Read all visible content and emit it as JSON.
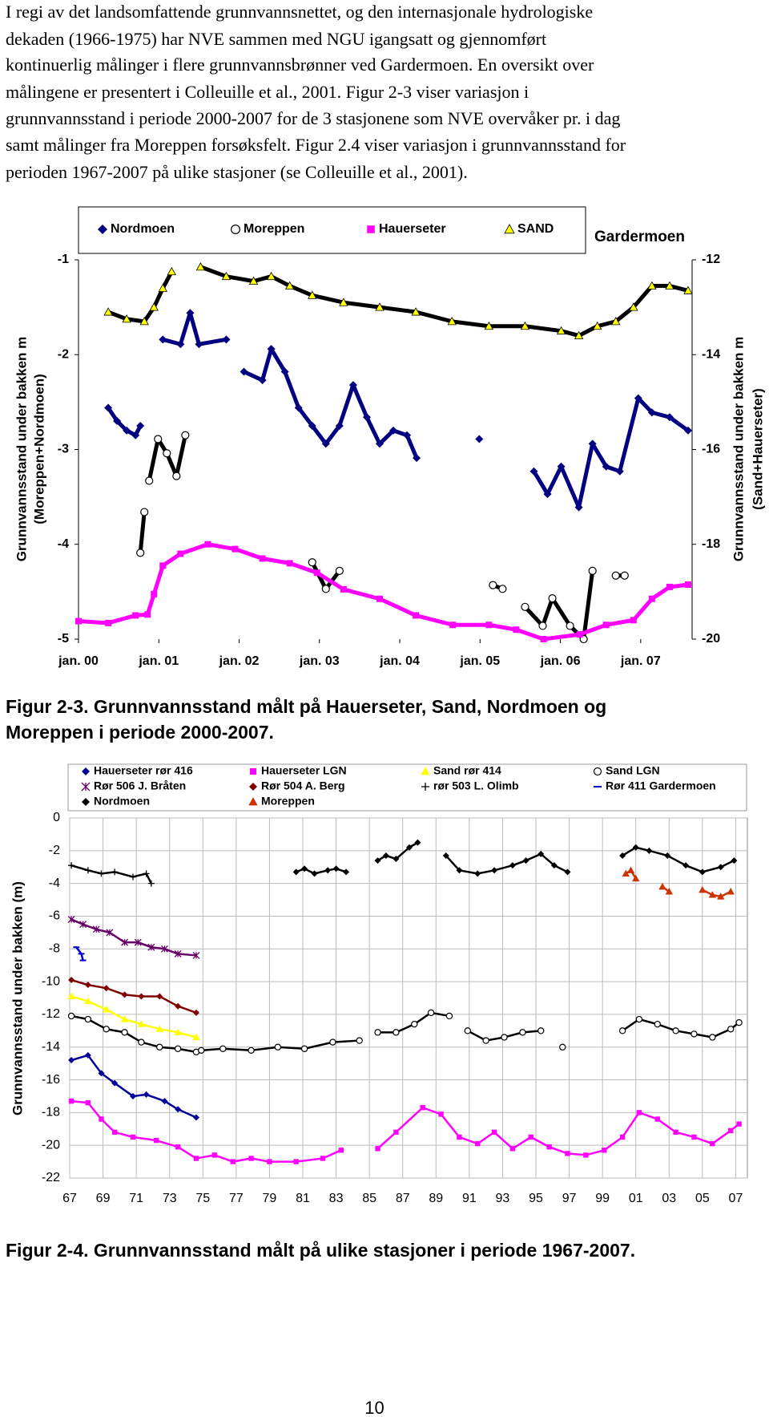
{
  "paragraph": [
    "I regi av det landsomfattende grunnvannsnettet, og den internasjonale hydrologiske",
    "dekaden (1966-1975) har NVE sammen med NGU igangsatt og gjennomført",
    "kontinuerlig målinger i flere grunnvannsbrønner ved Gardermoen. En oversikt over",
    "målingene er presentert i Colleuille et al., 2001. Figur 2-3 viser variasjon i",
    "grunnvannsstand i periode 2000-2007 for de 3 stasjonene som NVE overvåker pr. i dag",
    "samt målinger fra Moreppen forsøksfelt.  Figur 2.4 viser variasjon i grunnvannsstand for",
    "perioden 1967-2007 på ulike stasjoner (se Colleuille et al., 2001)."
  ],
  "captions": [
    [
      "Figur 2-3. Grunnvannsstand målt på Hauerseter, Sand, Nordmoen og",
      "Moreppen i periode 2000-2007."
    ],
    [
      "Figur 2-4. Grunnvannsstand målt på ulike stasjoner i periode 1967-2007."
    ]
  ],
  "page_number": 10,
  "chart_data": [
    {
      "type": "scatter",
      "title": "Gardermoen",
      "ylabel": [
        "Grunnvannsstand under bakken m",
        "(Moreppen+Nordmoen)"
      ],
      "y2label": [
        "Grunnvannsstand under bakken m",
        "(Sand+Hauerseter)"
      ],
      "xlim": [
        2000,
        2007.64
      ],
      "xticks": [
        {
          "value": 2000,
          "label": "jan. 00"
        },
        {
          "value": 2001,
          "label": "jan. 01"
        },
        {
          "value": 2002,
          "label": "jan. 02"
        },
        {
          "value": 2003,
          "label": "jan. 03"
        },
        {
          "value": 2004,
          "label": "jan. 04"
        },
        {
          "value": 2005,
          "label": "jan. 05"
        },
        {
          "value": 2006,
          "label": "jan. 06"
        },
        {
          "value": 2007,
          "label": "jan. 07"
        }
      ],
      "ylim": [
        -5,
        -1
      ],
      "yticks": [
        -1,
        -2,
        -3,
        -4,
        -5
      ],
      "y2lim": [
        -20,
        -12
      ],
      "y2ticks": [
        -12,
        -14,
        -16,
        -18,
        -20
      ],
      "grid": false,
      "series": [
        {
          "name": "Nordmoen",
          "color": "#000080",
          "marker": "diamond",
          "x": [
            2000.37,
            2000.48,
            2000.6,
            2000.71,
            2000.77,
            2000.9,
            2001.05,
            2001.27,
            2001.39,
            2001.5,
            2001.84,
            2001.95,
            2002.06,
            2002.29,
            2002.4,
            2002.57,
            2002.74,
            2002.91,
            2003.08,
            2003.25,
            2003.42,
            2003.59,
            2003.75,
            2003.92,
            2004.09,
            2004.21,
            2004.6,
            2004.99,
            2005.3,
            2005.67,
            2005.84,
            2006.01,
            2006.23,
            2006.4,
            2006.57,
            2006.74,
            2006.97,
            2007.14,
            2007.36,
            2007.59
          ],
          "values": [
            -2.56,
            -2.7,
            -2.8,
            -2.85,
            -2.75,
            null,
            -1.84,
            -1.89,
            -1.56,
            -1.89,
            -1.84,
            null,
            -2.18,
            -2.27,
            -1.94,
            -2.18,
            -2.56,
            -2.75,
            -2.94,
            -2.75,
            -2.32,
            -2.66,
            -2.94,
            -2.8,
            -2.85,
            -3.09,
            null,
            -2.89,
            null,
            -3.23,
            -3.47,
            -3.18,
            -3.61,
            -2.94,
            -3.18,
            -3.23,
            -2.46,
            -2.61,
            -2.66,
            -2.8
          ]
        },
        {
          "name": "Moreppen",
          "color": "#000000",
          "marker": "circle-open",
          "x": [
            2000.77,
            2000.82,
            2000.85,
            2000.88,
            2000.99,
            2001.1,
            2001.22,
            2001.33,
            2002.1,
            2002.91,
            2003.08,
            2003.25,
            2004.2,
            2005.16,
            2005.28,
            2005.4,
            2005.56,
            2005.78,
            2005.9,
            2006.12,
            2006.29,
            2006.4,
            2006.55,
            2006.69,
            2006.8
          ],
          "values": [
            -4.09,
            -3.66,
            null,
            -3.33,
            -2.89,
            -3.04,
            -3.28,
            -2.85,
            null,
            -4.19,
            -4.47,
            -4.28,
            null,
            -4.43,
            -4.47,
            null,
            -4.66,
            -4.86,
            -4.57,
            -4.86,
            -5,
            -4.28,
            null,
            -4.33,
            -4.33
          ]
        },
        {
          "name": "Hauerseter",
          "color": "#ff00ff",
          "marker": "square",
          "axis": "y2",
          "x": [
            2000,
            2000.37,
            2000.71,
            2000.86,
            2000.94,
            2001.05,
            2001.27,
            2001.61,
            2001.95,
            2002.29,
            2002.63,
            2002.97,
            2003.3,
            2003.75,
            2004.2,
            2004.66,
            2005.11,
            2005.45,
            2005.79,
            2006.24,
            2006.57,
            2006.91,
            2007.14,
            2007.36,
            2007.59
          ],
          "values": [
            -19.62,
            -19.66,
            -19.5,
            -19.48,
            -19.05,
            -18.45,
            -18.2,
            -18.0,
            -18.1,
            -18.3,
            -18.4,
            -18.6,
            -18.95,
            -19.15,
            -19.5,
            -19.7,
            -19.7,
            -19.8,
            -20.0,
            -19.9,
            -19.7,
            -19.6,
            -19.15,
            -18.9,
            -18.85
          ]
        },
        {
          "name": "SAND",
          "color": "#ffff00",
          "edge_color": "#000000",
          "marker": "triangle",
          "axis": "y2",
          "x": [
            2000.37,
            2000.6,
            2000.82,
            2000.94,
            2001.05,
            2001.16,
            2001.3,
            2001.52,
            2001.84,
            2002.18,
            2002.4,
            2002.63,
            2002.91,
            2003.3,
            2003.75,
            2004.2,
            2004.65,
            2005.11,
            2005.56,
            2006.01,
            2006.23,
            2006.46,
            2006.69,
            2006.91,
            2007.14,
            2007.36,
            2007.59
          ],
          "values": [
            -13.1,
            -13.25,
            -13.3,
            -13.0,
            -12.6,
            -12.25,
            null,
            -12.15,
            -12.35,
            -12.45,
            -12.35,
            -12.55,
            -12.75,
            -12.9,
            -13.0,
            -13.1,
            -13.3,
            -13.4,
            -13.4,
            -13.5,
            -13.6,
            -13.4,
            -13.3,
            -13.0,
            -12.55,
            -12.55,
            -12.65
          ]
        }
      ]
    },
    {
      "type": "scatter",
      "ylabel": [
        "Grunnvannsstand under bakken (m)"
      ],
      "xlim": [
        1967,
        2007.7
      ],
      "xticks": [
        {
          "value": 1967,
          "label": "67"
        },
        {
          "value": 1969,
          "label": "69"
        },
        {
          "value": 1971,
          "label": "71"
        },
        {
          "value": 1973,
          "label": "73"
        },
        {
          "value": 1975,
          "label": "75"
        },
        {
          "value": 1977,
          "label": "77"
        },
        {
          "value": 1979,
          "label": "79"
        },
        {
          "value": 1981,
          "label": "81"
        },
        {
          "value": 1983,
          "label": "83"
        },
        {
          "value": 1985,
          "label": "85"
        },
        {
          "value": 1987,
          "label": "87"
        },
        {
          "value": 1989,
          "label": "89"
        },
        {
          "value": 1991,
          "label": "91"
        },
        {
          "value": 1993,
          "label": "93"
        },
        {
          "value": 1995,
          "label": "95"
        },
        {
          "value": 1997,
          "label": "97"
        },
        {
          "value": 1999,
          "label": "99"
        },
        {
          "value": 2001,
          "label": "01"
        },
        {
          "value": 2003,
          "label": "03"
        },
        {
          "value": 2005,
          "label": "05"
        },
        {
          "value": 2007,
          "label": "07"
        }
      ],
      "ylim": [
        -22,
        0
      ],
      "yticks": [
        0,
        -2,
        -4,
        -6,
        -8,
        -10,
        -12,
        -14,
        -16,
        -18,
        -20,
        -22
      ],
      "grid": true,
      "series": [
        {
          "name": "Hauerseter rør 416",
          "color": "#000099",
          "marker": "diamond",
          "x": [
            1967.1,
            1968.1,
            1968.9,
            1969.7,
            1970.8,
            1971.6,
            1972.7,
            1973.5,
            1974.6
          ],
          "values": [
            -14.8,
            -14.5,
            -15.6,
            -16.2,
            -17.0,
            -16.9,
            -17.3,
            -17.8,
            -18.3
          ]
        },
        {
          "name": "Hauerseter LGN",
          "color": "#ff00ff",
          "marker": "square",
          "x": [
            1967.1,
            1968.1,
            1968.9,
            1969.7,
            1970.8,
            1972.2,
            1973.5,
            1974.6,
            1975.7,
            1976.8,
            1977.9,
            1979.0,
            1980.6,
            1982.2,
            1983.3,
            1984.4,
            1985.5,
            1986.6,
            1988.2,
            1989.3,
            1990.4,
            1991.5,
            1992.5,
            1993.6,
            1994.7,
            1995.8,
            1996.9,
            1998.0,
            1999.1,
            2000.2,
            2001.2,
            2002.3,
            2003.4,
            2004.5,
            2005.6,
            2006.7,
            2007.2
          ],
          "values": [
            -17.3,
            -17.4,
            -18.4,
            -19.2,
            -19.5,
            -19.7,
            -20.1,
            -20.8,
            -20.6,
            -21.0,
            -20.8,
            -21.0,
            -21.0,
            -20.8,
            -20.3,
            null,
            -20.2,
            -19.2,
            -17.7,
            -18.1,
            -19.5,
            -19.9,
            -19.2,
            -20.2,
            -19.5,
            -20.1,
            -20.5,
            -20.6,
            -20.3,
            -19.5,
            -18.0,
            -18.4,
            -19.2,
            -19.5,
            -19.9,
            -19.1,
            -18.7
          ]
        },
        {
          "name": "Sand rør 414",
          "color": "#ffff00",
          "marker": "triangle",
          "x": [
            1967.1,
            1968.1,
            1969.2,
            1970.3,
            1971.3,
            1972.4,
            1973.5,
            1974.6
          ],
          "values": [
            -10.9,
            -11.2,
            -11.7,
            -12.3,
            -12.6,
            -12.9,
            -13.1,
            -13.4
          ]
        },
        {
          "name": "Sand LGN",
          "color": "#000000",
          "marker": "circle-open",
          "x": [
            1967.1,
            1968.1,
            1969.2,
            1970.3,
            1971.3,
            1972.4,
            1973.5,
            1974.6,
            1974.9,
            1976.2,
            1977.9,
            1979.5,
            1981.1,
            1982.8,
            1984.4,
            1985.0,
            1985.5,
            1986.6,
            1987.7,
            1988.7,
            1989.8,
            1990.4,
            1990.9,
            1992.0,
            1993.1,
            1994.2,
            1995.3,
            1996.0,
            1996.6,
            1998.5,
            2000.2,
            2001.2,
            2002.3,
            2003.4,
            2004.5,
            2005.6,
            2006.7,
            2007.2
          ],
          "values": [
            -12.1,
            -12.3,
            -12.9,
            -13.1,
            -13.7,
            -14.0,
            -14.1,
            -14.3,
            -14.2,
            -14.1,
            -14.2,
            -14.0,
            -14.1,
            -13.7,
            -13.6,
            null,
            -13.1,
            -13.1,
            -12.6,
            -11.9,
            -12.1,
            null,
            -13.0,
            -13.6,
            -13.4,
            -13.1,
            -13.0,
            null,
            -14.0,
            null,
            -13.0,
            -12.3,
            -12.6,
            -13.0,
            -13.2,
            -13.4,
            -12.9,
            -12.5
          ]
        },
        {
          "name": "Rør 506 J. Bråten",
          "color": "#660066",
          "marker": "star",
          "x": [
            1967.1,
            1967.8,
            1968.6,
            1969.4,
            1970.3,
            1971.1,
            1971.9,
            1972.7,
            1973.5,
            1974.6
          ],
          "values": [
            -6.2,
            -6.5,
            -6.8,
            -7.0,
            -7.6,
            -7.6,
            -7.9,
            -8.0,
            -8.3,
            -8.4
          ]
        },
        {
          "name": "Rør 504 A. Berg",
          "color": "#800000",
          "marker": "diamond",
          "x": [
            1967.1,
            1968.1,
            1969.2,
            1970.3,
            1971.3,
            1972.4,
            1973.5,
            1974.6
          ],
          "values": [
            -9.9,
            -10.2,
            -10.4,
            -10.8,
            -10.9,
            -10.9,
            -11.5,
            -11.9
          ]
        },
        {
          "name": "rør 503  L. Olimb",
          "color": "#000000",
          "marker": "plus",
          "x": [
            1967.1,
            1968.1,
            1968.9,
            1969.7,
            1970.8,
            1971.6,
            1971.9
          ],
          "values": [
            -2.9,
            -3.2,
            -3.4,
            -3.3,
            -3.6,
            -3.4,
            -4.0
          ]
        },
        {
          "name": "Rør 411 Gardermoen",
          "color": "#0000cc",
          "marker": "dash",
          "x": [
            1967.4,
            1967.7,
            1967.8
          ],
          "values": [
            -7.9,
            -8.3,
            -8.7
          ]
        },
        {
          "name": "Nordmoen",
          "color": "#000000",
          "marker": "diamond",
          "x": [
            1980.6,
            1981.1,
            1981.7,
            1982.5,
            1983.0,
            1983.6,
            1984.5,
            1985.5,
            1986.0,
            1986.6,
            1987.4,
            1987.9,
            1988.8,
            1989.6,
            1990.4,
            1991.5,
            1992.5,
            1993.6,
            1994.4,
            1995.3,
            1996.1,
            1996.9,
            1998.5,
            2000.2,
            2001.0,
            2001.8,
            2002.9,
            2004.0,
            2005.0,
            2006.1,
            2006.9
          ],
          "values": [
            -3.3,
            -3.1,
            -3.4,
            -3.2,
            -3.1,
            -3.3,
            null,
            -2.6,
            -2.3,
            -2.5,
            -1.8,
            -1.5,
            null,
            -2.3,
            -3.2,
            -3.4,
            -3.2,
            -2.9,
            -2.6,
            -2.2,
            -2.9,
            -3.3,
            null,
            -2.3,
            -1.8,
            -2.0,
            -2.3,
            -2.9,
            -3.3,
            -3.0,
            -2.6
          ]
        },
        {
          "name": "Moreppen",
          "color": "#cc3300",
          "marker": "triangle",
          "x": [
            2000.4,
            2000.7,
            2001.0,
            2001.8,
            2002.6,
            2003.0,
            2004.0,
            2005.0,
            2005.6,
            2006.1,
            2006.7
          ],
          "values": [
            -3.4,
            -3.2,
            -3.7,
            null,
            -4.2,
            -4.5,
            null,
            -4.4,
            -4.7,
            -4.8,
            -4.5
          ]
        }
      ]
    }
  ]
}
